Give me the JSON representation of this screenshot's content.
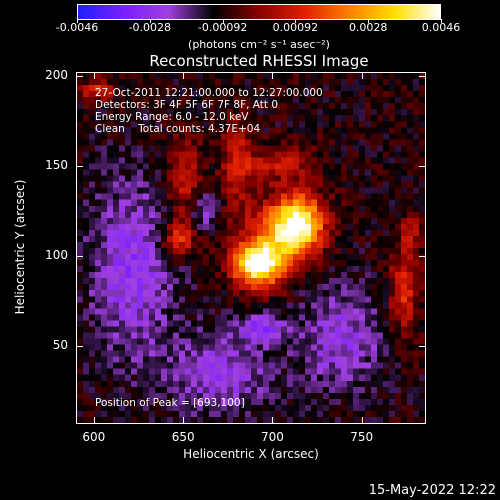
{
  "colorbar": {
    "ticks": [
      "-0.0046",
      "-0.0028",
      "-0.00092",
      "0.00092",
      "0.0028",
      "0.0046"
    ],
    "units": "(photons cm⁻² s⁻¹ asec⁻²)",
    "colors": [
      "#2020ff",
      "#7a1fff",
      "#a040e0",
      "#000000",
      "#8a0000",
      "#e02000",
      "#ff8000",
      "#ffe000",
      "#ffffff"
    ]
  },
  "title": "Reconstructed RHESSI Image",
  "info": {
    "time": "27-Oct-2011 12:21:00.000 to 12:27:00.000",
    "detectors": "Detectors: 3F 4F 5F 6F 7F 8F, Att 0",
    "energy": "Energy Range: 6.0 - 12.0 keV",
    "clean": "Clean    Total counts: 4.37E+04"
  },
  "peak": "Position of Peak = [693,100]",
  "axes": {
    "xlabel": "Heliocentric X (arcsec)",
    "ylabel": "Heliocentric Y (arcsec)",
    "xticks": [
      "600",
      "650",
      "700",
      "750"
    ],
    "yticks": [
      "200",
      "150",
      "100",
      "50"
    ],
    "xrange": [
      590,
      786
    ],
    "yrange": [
      7,
      202
    ]
  },
  "datestamp": "15-May-2022 12:22"
}
